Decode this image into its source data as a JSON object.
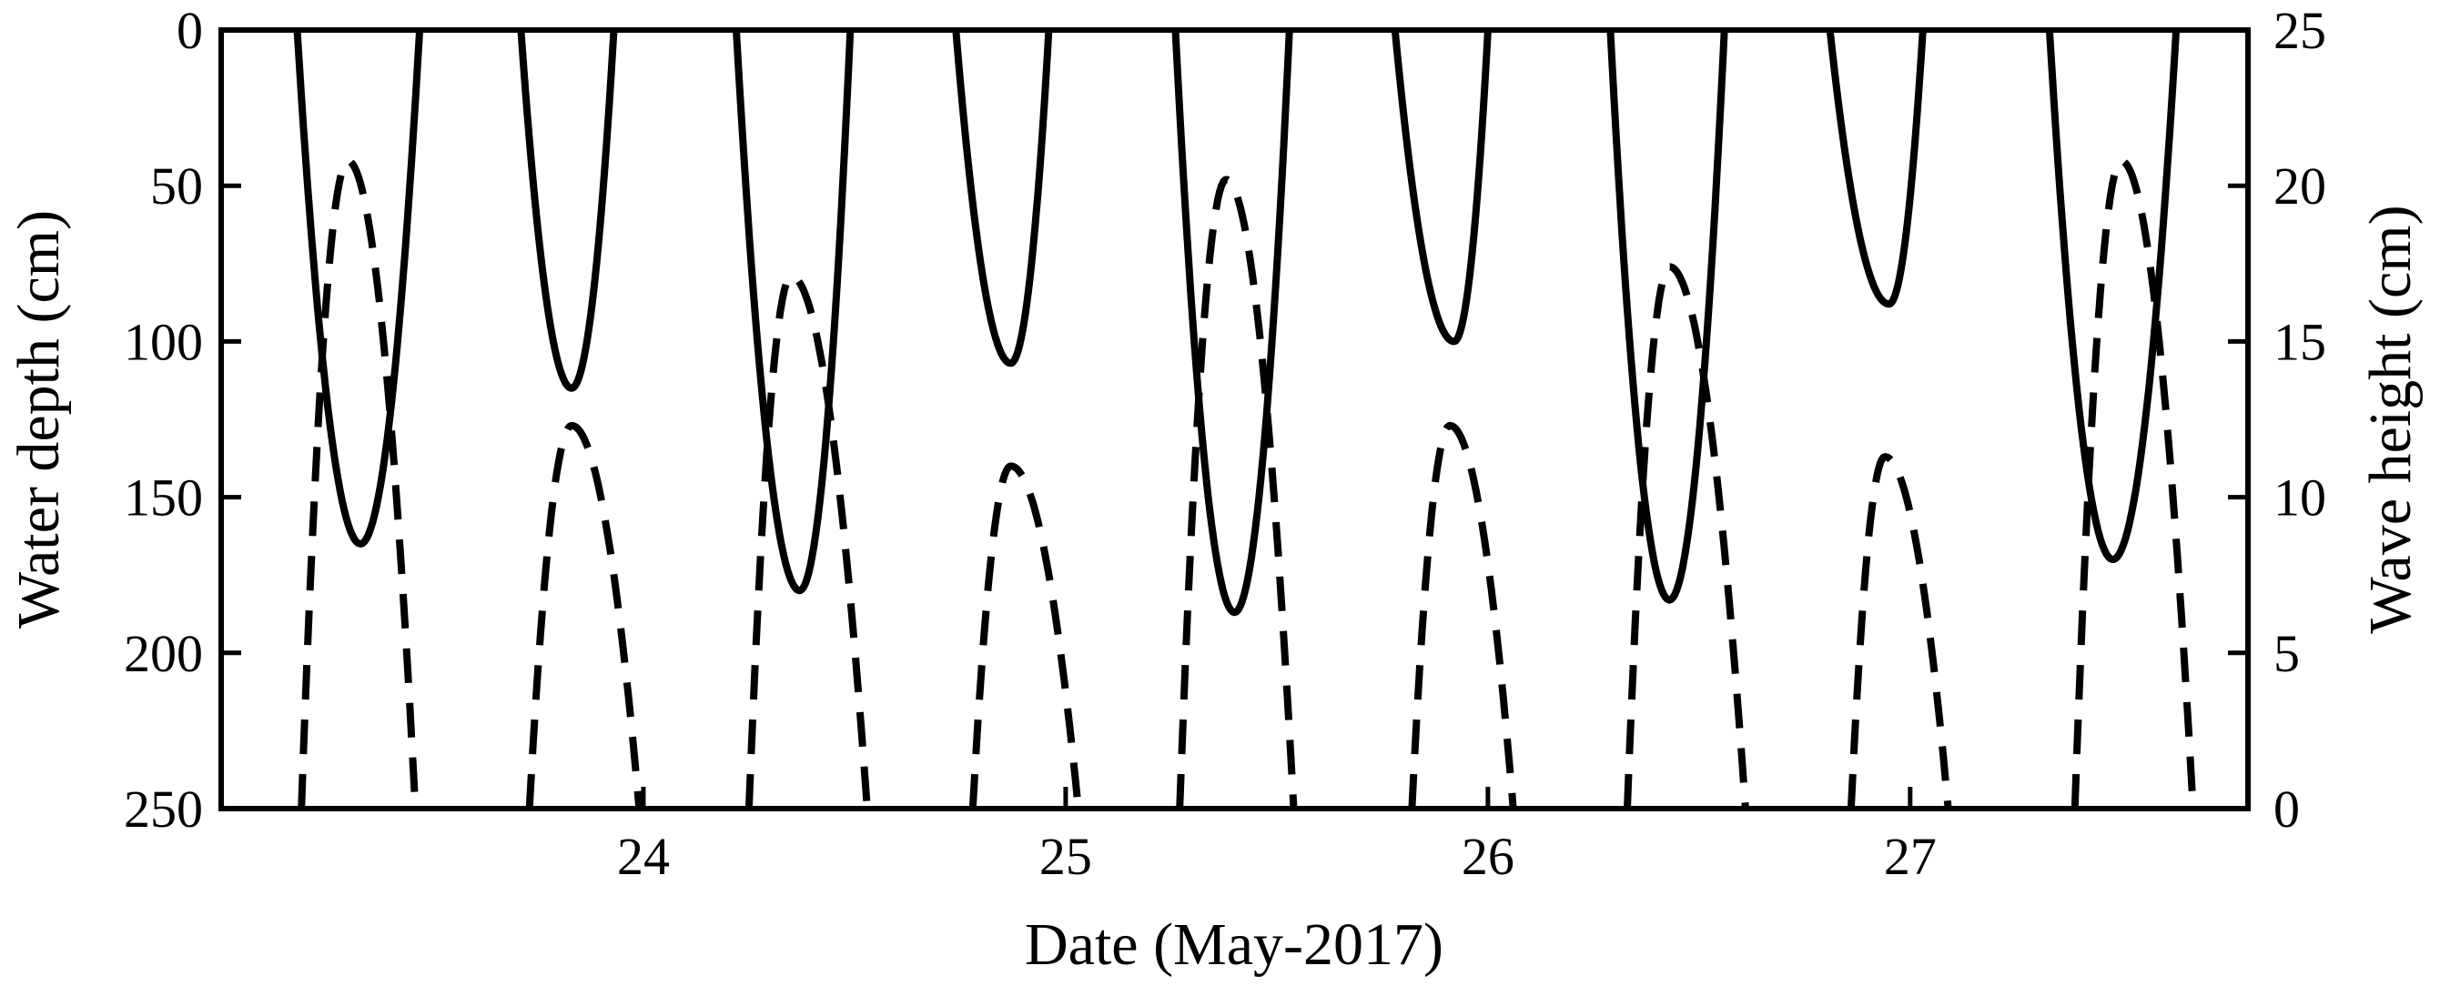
{
  "chart_data": {
    "type": "line",
    "title": "",
    "xlabel": "Date (May-2017)",
    "ylabel_left": "Water depth (cm)",
    "ylabel_right": "Wave height (cm)",
    "xlim": [
      23.0,
      27.8
    ],
    "x_ticks": [
      24,
      25,
      26,
      27
    ],
    "x_tick_labels": [
      "24",
      "25",
      "26",
      "27"
    ],
    "ylim_left": [
      0,
      250
    ],
    "left_inverted": true,
    "left_ticks": [
      0,
      50,
      100,
      150,
      200,
      250
    ],
    "left_tick_labels": [
      "0",
      "50",
      "100",
      "150",
      "200",
      "250"
    ],
    "ylim_right": [
      0,
      25
    ],
    "right_ticks": [
      0,
      5,
      10,
      15,
      20,
      25
    ],
    "right_tick_labels": [
      "0",
      "5",
      "10",
      "15",
      "20",
      "25"
    ],
    "grid": false,
    "line_color": "#000000",
    "series": [
      {
        "axis": "left",
        "style": "solid",
        "description_events": [
          {
            "start": 23.18,
            "end": 23.47,
            "peak_x": 23.33,
            "peak": 165
          },
          {
            "start": 23.71,
            "end": 23.93,
            "peak_x": 23.83,
            "peak": 115
          },
          {
            "start": 24.22,
            "end": 24.49,
            "peak_x": 24.37,
            "peak": 180
          },
          {
            "start": 24.74,
            "end": 24.96,
            "peak_x": 24.87,
            "peak": 107
          },
          {
            "start": 25.26,
            "end": 25.53,
            "peak_x": 25.4,
            "peak": 187
          },
          {
            "start": 25.78,
            "end": 26.0,
            "peak_x": 25.92,
            "peak": 100
          },
          {
            "start": 26.29,
            "end": 26.56,
            "peak_x": 26.43,
            "peak": 183
          },
          {
            "start": 26.81,
            "end": 27.03,
            "peak_x": 26.95,
            "peak": 88
          },
          {
            "start": 27.33,
            "end": 27.63,
            "peak_x": 27.48,
            "peak": 170
          }
        ]
      },
      {
        "axis": "right",
        "style": "dashed",
        "description_events": [
          {
            "start": 23.19,
            "end": 23.46,
            "peak_x": 23.3,
            "peak": 20.8
          },
          {
            "start": 23.73,
            "end": 23.99,
            "peak_x": 23.83,
            "peak": 12.3
          },
          {
            "start": 24.25,
            "end": 24.53,
            "peak_x": 24.35,
            "peak": 17.1
          },
          {
            "start": 24.78,
            "end": 25.03,
            "peak_x": 24.87,
            "peak": 11.0
          },
          {
            "start": 25.27,
            "end": 25.54,
            "peak_x": 25.38,
            "peak": 20.2
          },
          {
            "start": 25.82,
            "end": 26.06,
            "peak_x": 25.91,
            "peak": 12.3
          },
          {
            "start": 26.33,
            "end": 26.61,
            "peak_x": 26.43,
            "peak": 17.4
          },
          {
            "start": 26.86,
            "end": 27.09,
            "peak_x": 26.94,
            "peak": 11.3
          },
          {
            "start": 27.39,
            "end": 27.67,
            "peak_x": 27.5,
            "peak": 20.8
          }
        ]
      }
    ]
  }
}
